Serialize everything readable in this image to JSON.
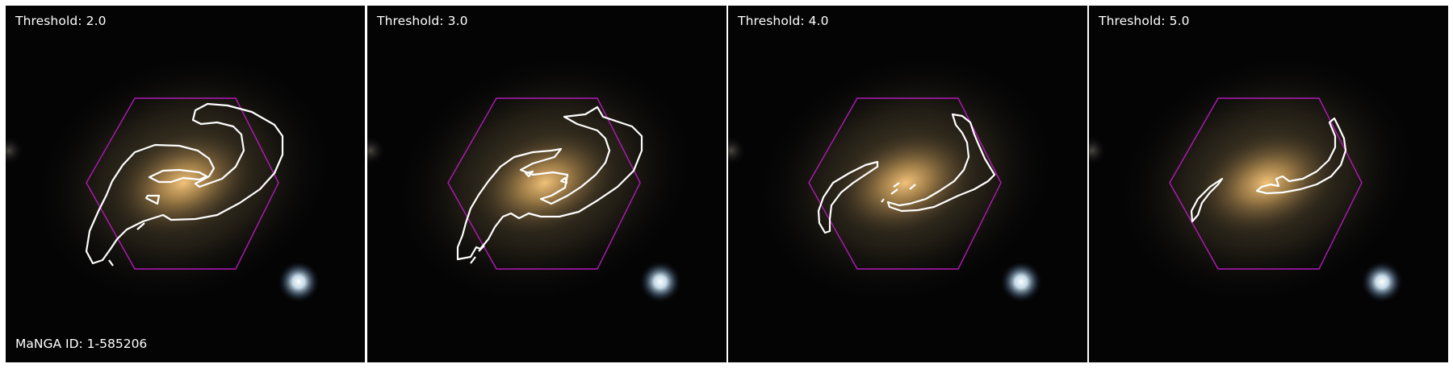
{
  "figure": {
    "panels": [
      {
        "threshold_label": "Threshold: 2.0"
      },
      {
        "threshold_label": "Threshold: 3.0"
      },
      {
        "threshold_label": "Threshold: 4.0"
      },
      {
        "threshold_label": "Threshold: 5.0"
      }
    ],
    "manga_id_label": "MaNGA ID: 1-585206"
  },
  "colors": {
    "background": "#040405",
    "contour": "#ffffff",
    "hexagon": "#b21ab8",
    "galaxy_core": "#f2c27a",
    "star": "#e8f6ff"
  }
}
